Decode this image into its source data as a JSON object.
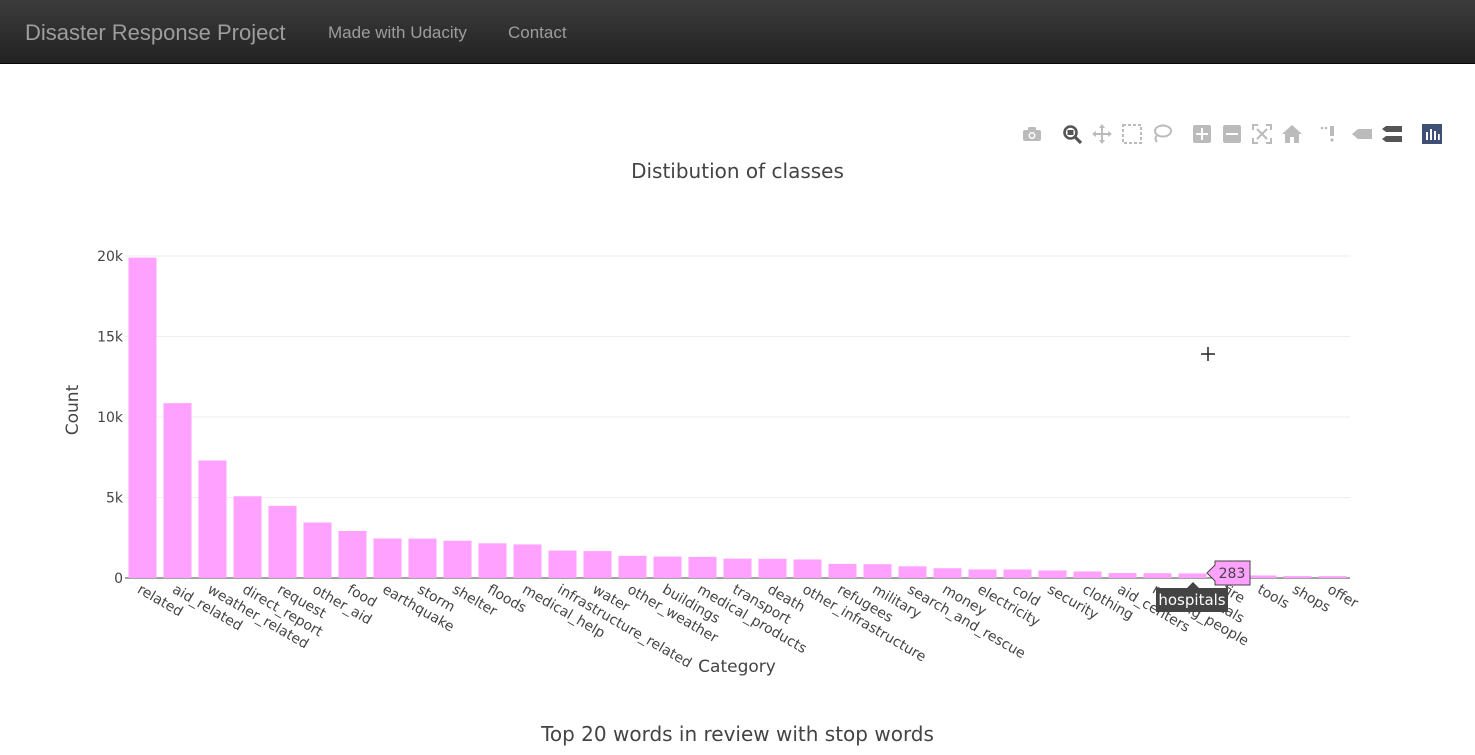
{
  "nav": {
    "brand": "Disaster Response Project",
    "links": [
      "Made with Udacity",
      "Contact"
    ]
  },
  "modebar": {
    "icons": [
      "camera-icon",
      "zoom-icon",
      "pan-icon",
      "box-select-icon",
      "lasso-icon",
      "zoom-in-icon",
      "zoom-out-icon",
      "autoscale-icon",
      "reset-axes-icon",
      "spike-lines-icon",
      "hover-closest-icon",
      "hover-compare-icon",
      "plotly-logo-icon"
    ]
  },
  "chart_data": {
    "type": "bar",
    "title": "Distibution of classes",
    "xlabel": "Category",
    "ylabel": "Count",
    "ylim": [
      0,
      20000
    ],
    "ytick_values": [
      0,
      5000,
      10000,
      15000,
      20000
    ],
    "ytick_labels": [
      "0",
      "5k",
      "10k",
      "15k",
      "20k"
    ],
    "bar_color": "#ffa1ff",
    "categories": [
      "related",
      "aid_related",
      "weather_related",
      "direct_report",
      "request",
      "other_aid",
      "food",
      "earthquake",
      "storm",
      "shelter",
      "floods",
      "medical_help",
      "infrastructure_related",
      "water",
      "other_weather",
      "buildings",
      "medical_products",
      "transport",
      "death",
      "other_infrastructure",
      "refugees",
      "military",
      "search_and_rescue",
      "money",
      "electricity",
      "cold",
      "security",
      "clothing",
      "aid_centers",
      "missing_people",
      "hospitals",
      "fire",
      "tools",
      "shops",
      "offer"
    ],
    "values": [
      19900,
      10860,
      7300,
      5075,
      4480,
      3450,
      2920,
      2455,
      2445,
      2315,
      2155,
      2085,
      1705,
      1672,
      1376,
      1333,
      1313,
      1201,
      1194,
      1151,
      876,
      860,
      724,
      604,
      532,
      530,
      471,
      406,
      309,
      298,
      283,
      282,
      159,
      120,
      118
    ],
    "hover": {
      "category": "hospitals",
      "value": "283"
    }
  },
  "next_chart": {
    "title": "Top 20 words in review with stop words"
  }
}
